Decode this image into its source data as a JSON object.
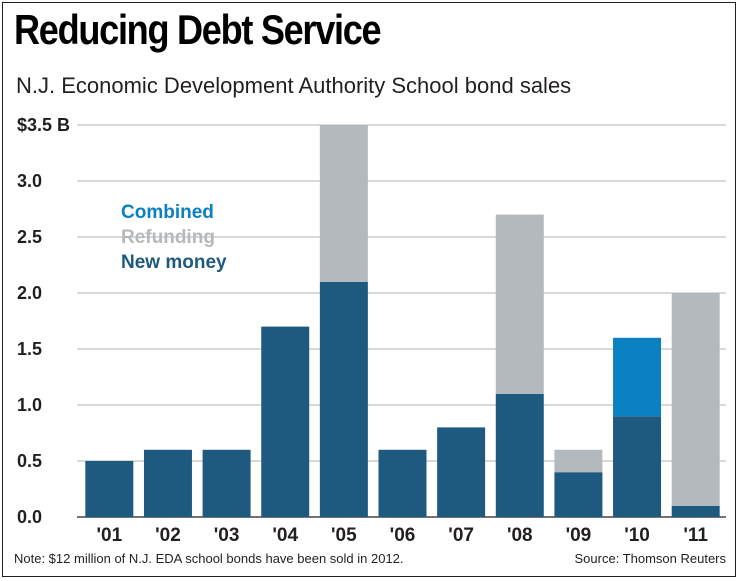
{
  "chart_data": {
    "type": "bar",
    "stacked": true,
    "title": "Reducing Debt Service",
    "subtitle": "N.J. Economic Development Authority School bond sales",
    "categories": [
      "'01",
      "'02",
      "'03",
      "'04",
      "'05",
      "'06",
      "'07",
      "'08",
      "'09",
      "'10",
      "'11"
    ],
    "series": [
      {
        "name": "New money",
        "color": "#1e5a80",
        "values": [
          0.5,
          0.6,
          0.6,
          1.7,
          2.1,
          0.6,
          0.8,
          1.1,
          0.4,
          0.9,
          0.1
        ]
      },
      {
        "name": "Combined",
        "color": "#0a7fc2",
        "values": [
          0,
          0,
          0,
          0,
          0,
          0,
          0,
          0,
          0,
          0.7,
          0
        ]
      },
      {
        "name": "Refunding",
        "color": "#b4b9bd",
        "values": [
          0,
          0,
          0,
          0,
          1.4,
          0,
          0,
          1.6,
          0.2,
          0,
          1.9
        ]
      }
    ],
    "legend": [
      "Combined",
      "Refunding",
      "New money"
    ],
    "legend_position": "top-left",
    "ytick_labels": [
      "0.0",
      "0.5",
      "1.0",
      "1.5",
      "2.0",
      "2.5",
      "3.0",
      "$3.5 B"
    ],
    "ytick_values": [
      0,
      0.5,
      1.0,
      1.5,
      2.0,
      2.5,
      3.0,
      3.5
    ],
    "ylim": [
      0,
      3.5
    ],
    "grid": true,
    "footnote": "Note: $12 million of N.J. EDA school bonds have been sold in 2012.",
    "source": "Source: Thomson Reuters"
  }
}
